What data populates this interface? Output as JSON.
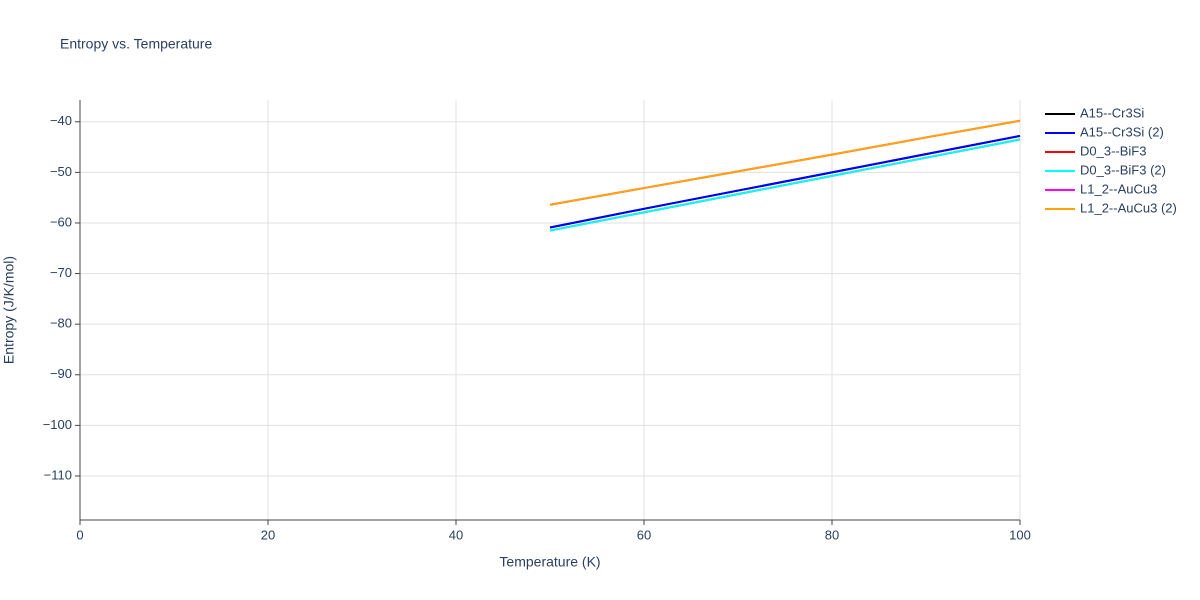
{
  "chart_data": {
    "type": "line",
    "title": "Entropy vs. Temperature",
    "x_label": "Temperature (K)",
    "y_label": "Entropy (J/K/mol)",
    "x": [
      50,
      60,
      70,
      80,
      90,
      100
    ],
    "series": [
      {
        "name": "A15--Cr3Si",
        "color": "#000000",
        "values": [
          -60.9,
          -57.2,
          -53.6,
          -50.0,
          -46.4,
          -42.8
        ]
      },
      {
        "name": "A15--Cr3Si (2)",
        "color": "#0000ff",
        "values": [
          -60.9,
          -57.2,
          -53.6,
          -50.0,
          -46.4,
          -42.8
        ]
      },
      {
        "name": "D0_3--BiF3",
        "color": "#ff0000",
        "values": [
          -61.5,
          -57.9,
          -54.3,
          -50.7,
          -47.1,
          -43.5
        ]
      },
      {
        "name": "D0_3--BiF3 (2)",
        "color": "#00ffff",
        "values": [
          -61.5,
          -57.9,
          -54.3,
          -50.7,
          -47.1,
          -43.5
        ]
      },
      {
        "name": "L1_2--AuCu3",
        "color": "#ff00ff",
        "values": [
          -56.4,
          -53.1,
          -49.8,
          -46.5,
          -43.1,
          -39.8
        ]
      },
      {
        "name": "L1_2--AuCu3 (2)",
        "color": "#ffa500",
        "values": [
          -56.4,
          -53.1,
          -49.8,
          -46.5,
          -43.1,
          -39.8
        ]
      }
    ],
    "xlim": [
      0,
      100
    ],
    "xticks": [
      0,
      20,
      40,
      60,
      80,
      100
    ],
    "ylim": [
      -118.7,
      -35.7
    ],
    "yticks": [
      {
        "value": -110,
        "label": "−110"
      },
      {
        "value": -100,
        "label": "−100"
      },
      {
        "value": -90,
        "label": "−90"
      },
      {
        "value": -80,
        "label": "−80"
      },
      {
        "value": -70,
        "label": "−70"
      },
      {
        "value": -60,
        "label": "−60"
      },
      {
        "value": -50,
        "label": "−50"
      },
      {
        "value": -40,
        "label": "−40"
      }
    ],
    "grid": true
  }
}
